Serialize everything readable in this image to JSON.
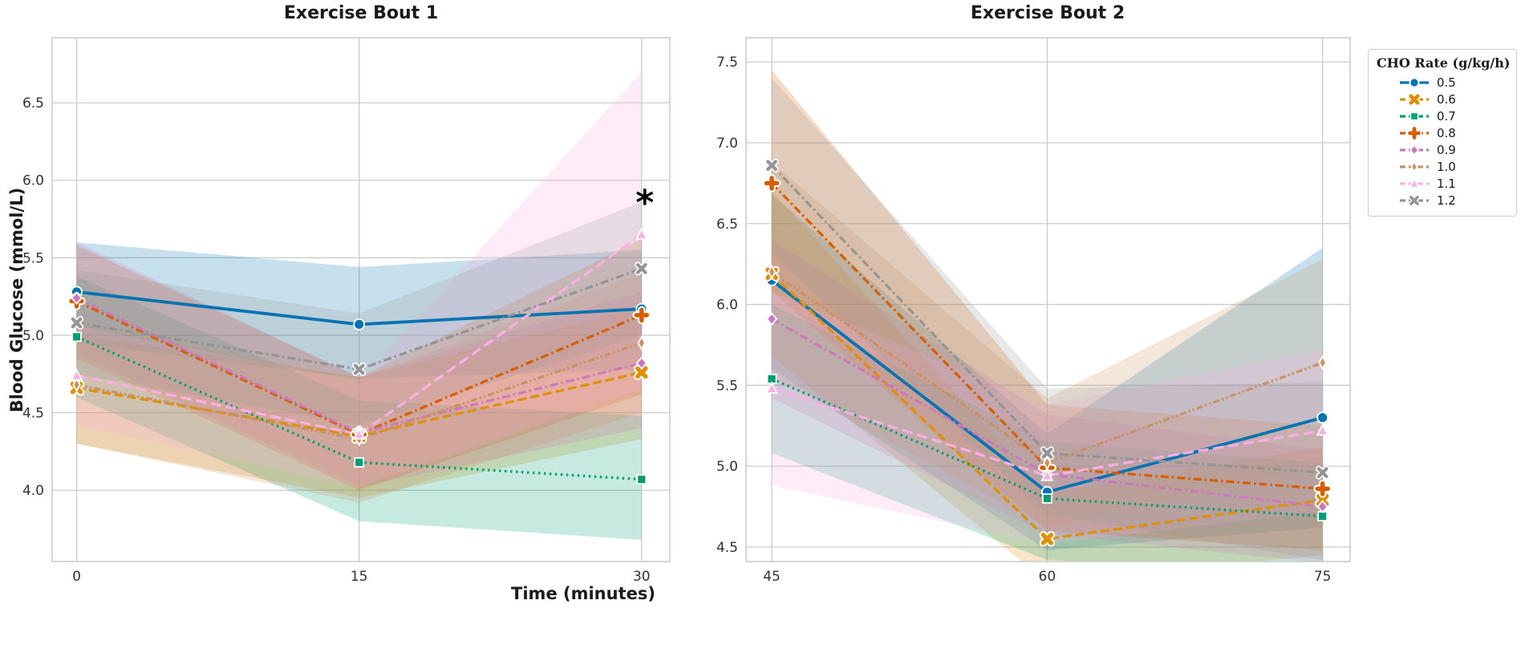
{
  "figure": {
    "xlabel": "Time (minutes)",
    "ylabel": "Blood Glucose (mmol/L)",
    "background": "#ffffff",
    "grid_color": "#cccccc",
    "text_color": "#1a1a1a",
    "tick_color": "#333333"
  },
  "legend": {
    "title": "CHO Rate (g/kg/h)",
    "position": "top-right-outside",
    "entries": [
      {
        "label": "0.5",
        "color": "#0173b2",
        "marker": "circle",
        "dash": "solid"
      },
      {
        "label": "0.6",
        "color": "#de8f05",
        "marker": "X",
        "dash": "dash"
      },
      {
        "label": "0.7",
        "color": "#029e73",
        "marker": "square",
        "dash": "dot"
      },
      {
        "label": "0.8",
        "color": "#d55e00",
        "marker": "plus",
        "dash": "dashdot"
      },
      {
        "label": "0.9",
        "color": "#cc78bc",
        "marker": "diamond",
        "dash": "dashdot"
      },
      {
        "label": "1.0",
        "color": "#ca9161",
        "marker": "thin-diamond",
        "dash": "dashdotdot"
      },
      {
        "label": "1.1",
        "color": "#fbafe4",
        "marker": "triangle",
        "dash": "longdash"
      },
      {
        "label": "1.2",
        "color": "#949494",
        "marker": "x",
        "dash": "dashdot"
      }
    ]
  },
  "chart_data": [
    {
      "type": "line",
      "title": "Exercise Bout 1",
      "x": [
        0,
        15,
        30
      ],
      "xticks": [
        0,
        15,
        30
      ],
      "yticks": [
        4.0,
        4.5,
        5.0,
        5.5,
        6.0,
        6.5
      ],
      "xlim": [
        -1.3,
        31.5
      ],
      "ylim": [
        3.54,
        6.92
      ],
      "grid": true,
      "band_alpha": 0.22,
      "series": [
        {
          "name": "0.5",
          "values": [
            5.28,
            5.07,
            5.17
          ],
          "lo": [
            4.95,
            4.72,
            4.78
          ],
          "hi": [
            5.6,
            5.44,
            5.55
          ]
        },
        {
          "name": "0.6",
          "values": [
            4.66,
            4.35,
            4.76
          ],
          "lo": [
            4.3,
            3.95,
            4.33
          ],
          "hi": [
            5.0,
            4.73,
            5.18
          ]
        },
        {
          "name": "0.7",
          "values": [
            4.99,
            4.18,
            4.07
          ],
          "lo": [
            4.6,
            3.8,
            3.68
          ],
          "hi": [
            5.38,
            4.58,
            4.48
          ]
        },
        {
          "name": "0.8",
          "values": [
            5.22,
            4.36,
            5.13
          ],
          "lo": [
            4.85,
            4.0,
            4.62
          ],
          "hi": [
            5.58,
            4.73,
            5.62
          ]
        },
        {
          "name": "0.9",
          "values": [
            5.24,
            4.37,
            4.82
          ],
          "lo": [
            4.88,
            4.02,
            4.4
          ],
          "hi": [
            5.6,
            4.73,
            5.28
          ]
        },
        {
          "name": "1.0",
          "values": [
            4.68,
            4.33,
            4.95
          ],
          "lo": [
            4.3,
            3.92,
            4.5
          ],
          "hi": [
            5.08,
            4.72,
            5.4
          ]
        },
        {
          "name": "1.1",
          "values": [
            4.74,
            4.36,
            5.65
          ],
          "lo": [
            4.42,
            4.02,
            4.65
          ],
          "hi": [
            5.06,
            4.7,
            6.7
          ]
        },
        {
          "name": "1.2",
          "values": [
            5.08,
            4.78,
            5.43
          ],
          "lo": [
            4.75,
            4.42,
            5.0
          ],
          "hi": [
            5.42,
            5.14,
            5.86
          ]
        }
      ],
      "annotation": {
        "text": "*",
        "x": 30,
        "y": 5.85
      }
    },
    {
      "type": "line",
      "title": "Exercise Bout 2",
      "x": [
        45,
        60,
        75
      ],
      "xticks": [
        45,
        60,
        75
      ],
      "yticks": [
        4.5,
        5.0,
        5.5,
        6.0,
        6.5,
        7.0,
        7.5
      ],
      "xlim": [
        43.6,
        76.5
      ],
      "ylim": [
        4.41,
        7.65
      ],
      "grid": true,
      "band_alpha": 0.22,
      "series": [
        {
          "name": "0.5",
          "values": [
            6.15,
            4.84,
            5.3
          ],
          "lo": [
            5.6,
            4.48,
            4.62
          ],
          "hi": [
            6.68,
            5.2,
            6.35
          ]
        },
        {
          "name": "0.6",
          "values": [
            6.19,
            4.55,
            4.79
          ],
          "lo": [
            5.68,
            4.28,
            4.45
          ],
          "hi": [
            6.7,
            4.83,
            5.12
          ]
        },
        {
          "name": "0.7",
          "values": [
            5.54,
            4.8,
            4.69
          ],
          "lo": [
            5.08,
            4.42,
            4.35
          ],
          "hi": [
            6.0,
            5.15,
            5.02
          ]
        },
        {
          "name": "0.8",
          "values": [
            6.75,
            4.99,
            4.86
          ],
          "lo": [
            6.08,
            4.6,
            4.48
          ],
          "hi": [
            7.45,
            5.38,
            5.25
          ]
        },
        {
          "name": "0.9",
          "values": [
            5.91,
            4.95,
            4.75
          ],
          "lo": [
            5.42,
            4.58,
            4.4
          ],
          "hi": [
            6.4,
            5.32,
            5.1
          ]
        },
        {
          "name": "1.0",
          "values": [
            6.2,
            5.02,
            5.64
          ],
          "lo": [
            5.55,
            4.62,
            5.0
          ],
          "hi": [
            6.88,
            5.42,
            6.28
          ]
        },
        {
          "name": "1.1",
          "values": [
            5.48,
            4.94,
            5.22
          ],
          "lo": [
            4.88,
            4.52,
            4.72
          ],
          "hi": [
            6.08,
            5.38,
            5.72
          ]
        },
        {
          "name": "1.2",
          "values": [
            6.86,
            5.08,
            4.96
          ],
          "lo": [
            6.32,
            4.7,
            4.42
          ],
          "hi": [
            7.4,
            5.48,
            5.52
          ]
        }
      ],
      "annotation": null
    }
  ]
}
